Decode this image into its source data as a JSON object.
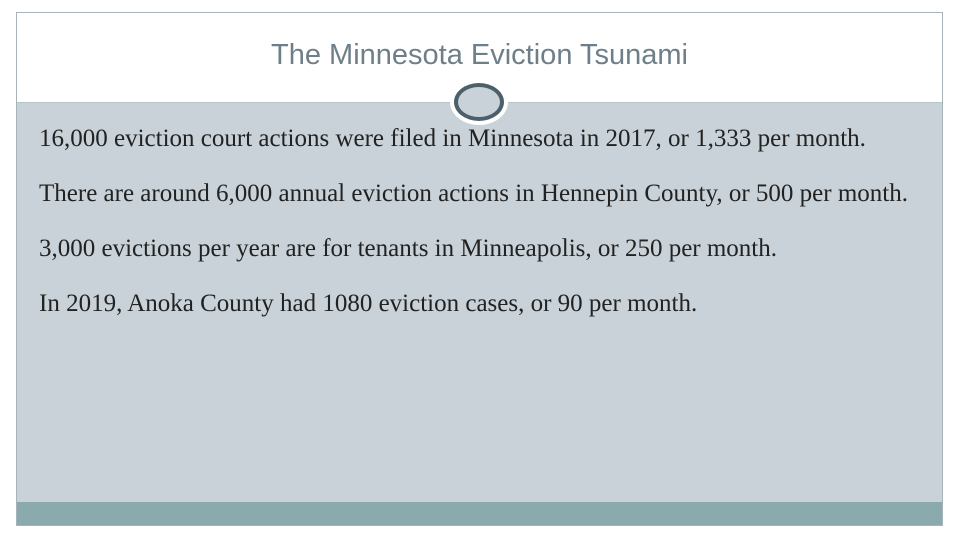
{
  "title": "The Minnesota Eviction Tsunami",
  "bullets": [
    "16,000 eviction court actions were filed in Minnesota in 2017, or 1,333 per month.",
    "There are around 6,000 annual eviction actions in Hennepin County, or 500 per month.",
    "3,000 evictions per year are for tenants in Minneapolis, or 250 per month.",
    "In 2019, Anoka County had 1080 eviction cases, or 90 per month."
  ]
}
